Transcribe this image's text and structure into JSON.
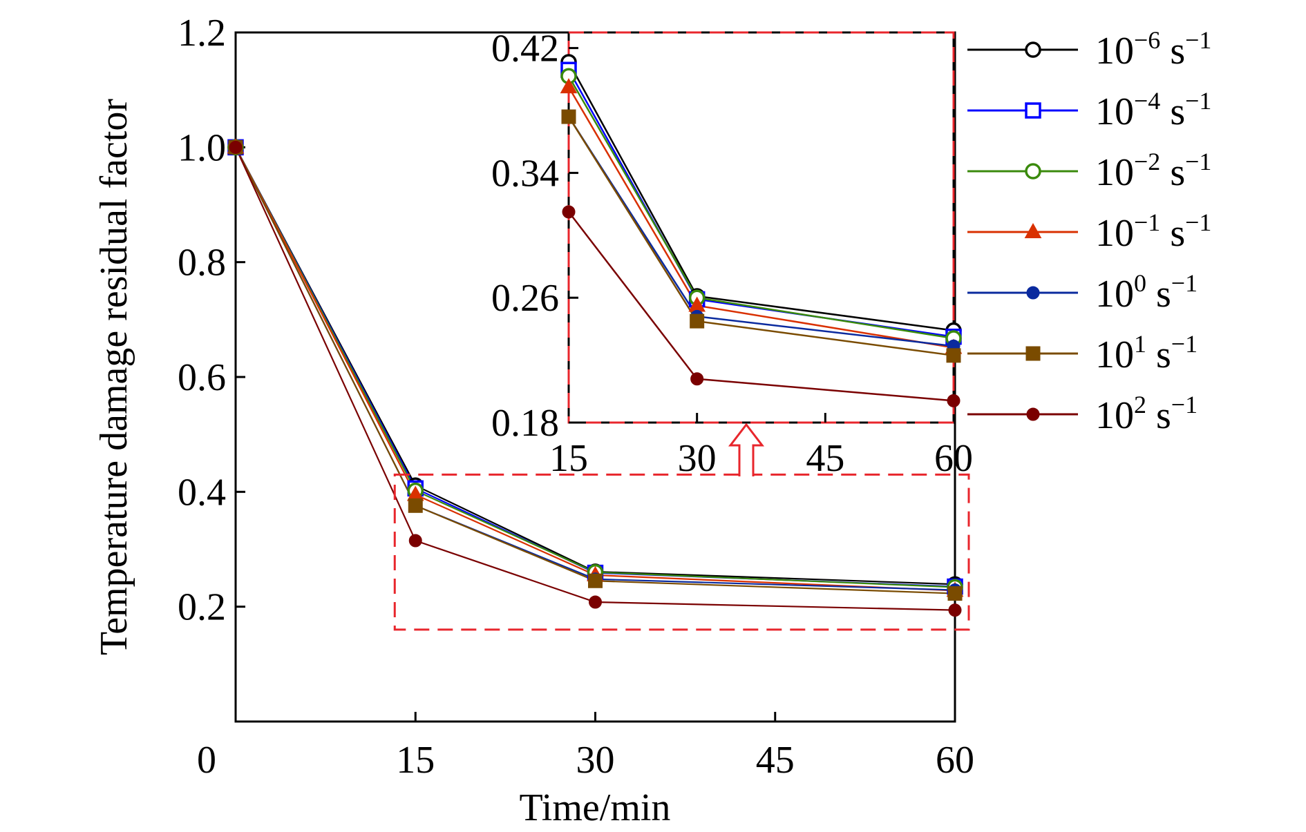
{
  "chart_data": {
    "type": "line",
    "xlabel": "Time/min",
    "ylabel": "Temperature damage residual factor",
    "x": [
      0,
      15,
      30,
      60
    ],
    "xticks": [
      0,
      15,
      30,
      45,
      60
    ],
    "xlim": [
      0,
      60
    ],
    "yticks": [
      0.2,
      0.4,
      0.6,
      0.8,
      1.0,
      1.2
    ],
    "ylim": [
      0,
      1.2
    ],
    "grid": false,
    "legend_position": "right",
    "series": [
      {
        "name": "10",
        "exp": "−6",
        "unit": "s",
        "unit_exp": "−1",
        "color": "#000000",
        "marker": "circle-open",
        "values": [
          1.0,
          0.411,
          0.261,
          0.239
        ]
      },
      {
        "name": "10",
        "exp": "−4",
        "unit": "s",
        "unit_exp": "−1",
        "color": "#0000ff",
        "marker": "square-open",
        "values": [
          1.0,
          0.406,
          0.259,
          0.235
        ]
      },
      {
        "name": "10",
        "exp": "−2",
        "unit": "s",
        "unit_exp": "−1",
        "color": "#3a8a0c",
        "marker": "circle-open",
        "values": [
          1.0,
          0.402,
          0.26,
          0.234
        ]
      },
      {
        "name": "10",
        "exp": "−1",
        "unit": "s",
        "unit_exp": "−1",
        "color": "#d93000",
        "marker": "triangle",
        "values": [
          1.0,
          0.395,
          0.255,
          0.228
        ]
      },
      {
        "name": "10",
        "exp": "0",
        "unit": "s",
        "unit_exp": "−1",
        "color": "#0a2a9e",
        "marker": "circle",
        "values": [
          1.0,
          0.376,
          0.248,
          0.229
        ]
      },
      {
        "name": "10",
        "exp": "1",
        "unit": "s",
        "unit_exp": "−1",
        "color": "#7a4b00",
        "marker": "square",
        "values": [
          1.0,
          0.376,
          0.245,
          0.223
        ]
      },
      {
        "name": "10",
        "exp": "2",
        "unit": "s",
        "unit_exp": "−1",
        "color": "#7a0000",
        "marker": "circle",
        "values": [
          1.0,
          0.315,
          0.208,
          0.194
        ]
      }
    ],
    "inset": {
      "x": [
        15,
        30,
        60
      ],
      "xticks": [
        15,
        30,
        45,
        60
      ],
      "xlim": [
        15,
        60
      ],
      "yticks": [
        0.18,
        0.26,
        0.34,
        0.42
      ],
      "ylim": [
        0.18,
        0.43
      ],
      "zoom_region": {
        "x": [
          15,
          60
        ],
        "y": [
          0.16,
          0.43
        ]
      }
    }
  }
}
